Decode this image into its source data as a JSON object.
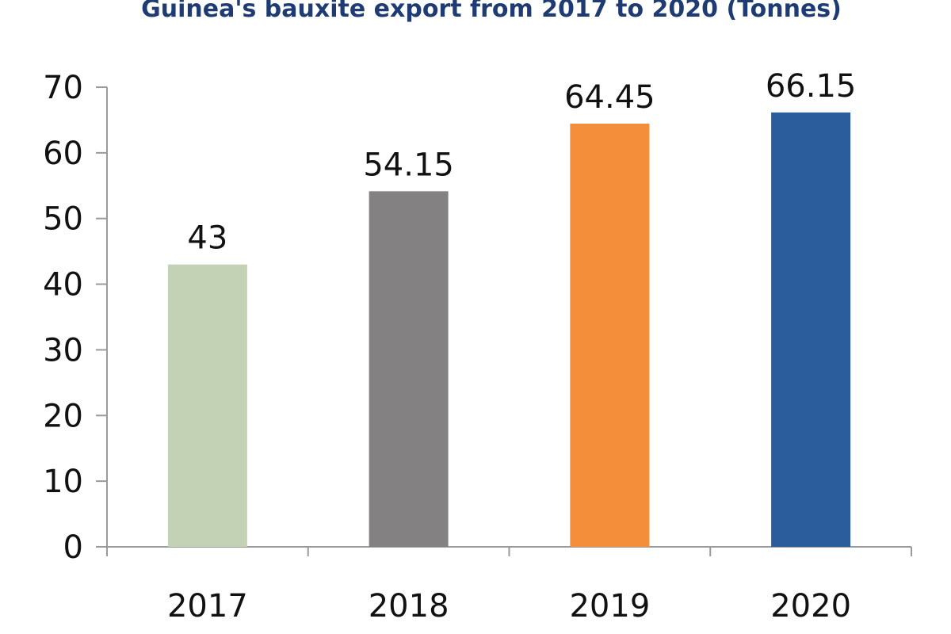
{
  "chart_data": {
    "type": "bar",
    "title": "Guinea's bauxite export from 2017 to 2020 (Tonnes)",
    "categories": [
      "2017",
      "2018",
      "2019",
      "2020"
    ],
    "values": [
      43,
      54.15,
      64.45,
      66.15
    ],
    "data_labels": [
      "43",
      "54.15",
      "64.45",
      "66.15"
    ],
    "bar_colors": [
      "#c3d1b4",
      "#838181",
      "#f58e3b",
      "#2b5c9b"
    ],
    "ylim": [
      0,
      70
    ],
    "yticks": [
      0,
      10,
      20,
      30,
      40,
      50,
      60,
      70
    ],
    "ytick_labels": [
      "0",
      "10",
      "20",
      "30",
      "40",
      "50",
      "60",
      "70"
    ],
    "xlabel": "",
    "ylabel": "",
    "grid": false,
    "legend": "none",
    "axis_color": "#9a9a9a",
    "title_color": "#1f3b73"
  }
}
